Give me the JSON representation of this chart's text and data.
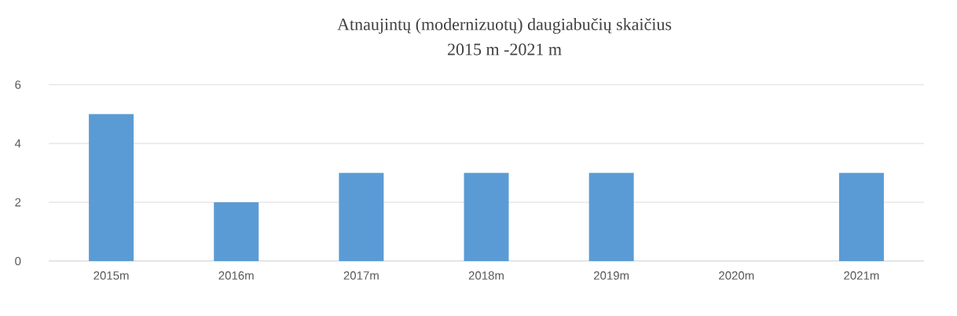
{
  "chart_data": {
    "type": "bar",
    "title": "Atnaujintų (modernizuotų) daugiabučių skaičius",
    "subtitle": "2015 m -2021 m",
    "categories": [
      "2015m",
      "2016m",
      "2017m",
      "2018m",
      "2019m",
      "2020m",
      "2021m"
    ],
    "values": [
      5,
      2,
      3,
      3,
      3,
      0,
      3
    ],
    "color": "#5b9bd5",
    "ylim": [
      0,
      6
    ],
    "yticks": [
      0,
      2,
      4,
      6
    ],
    "grid": "y"
  }
}
